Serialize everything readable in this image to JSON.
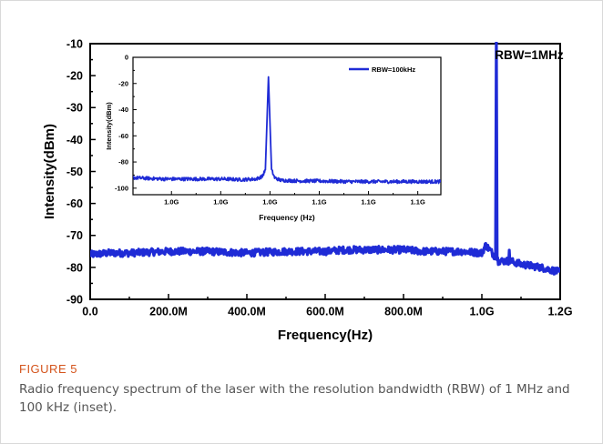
{
  "chart_data": [
    {
      "type": "line",
      "title": "",
      "xlabel": "Frequency(Hz)",
      "ylabel": "Intensity(dBm)",
      "xlim": [
        0,
        1200000000
      ],
      "ylim": [
        -90,
        -10
      ],
      "x_ticks": [
        {
          "value": 0,
          "label": "0.0"
        },
        {
          "value": 200000000,
          "label": "200.0M"
        },
        {
          "value": 400000000,
          "label": "400.0M"
        },
        {
          "value": 600000000,
          "label": "600.0M"
        },
        {
          "value": 800000000,
          "label": "800.0M"
        },
        {
          "value": 1000000000,
          "label": "1.0G"
        },
        {
          "value": 1200000000,
          "label": "1.2G"
        }
      ],
      "y_ticks": [
        -10,
        -20,
        -30,
        -40,
        -50,
        -60,
        -70,
        -80,
        -90
      ],
      "annotation": "RBW=1MHz",
      "color": "#1f2bd6",
      "series": [
        {
          "x": [
            0,
            50000000,
            100000000,
            200000000,
            300000000,
            400000000,
            500000000,
            600000000,
            650000000,
            700000000,
            750000000,
            800000000,
            850000000,
            900000000,
            950000000,
            1000000000,
            1010000000,
            1030000000,
            1035000000,
            1037000000,
            1039000000,
            1042000000,
            1050000000,
            1068000000,
            1070000000,
            1072000000,
            1100000000,
            1150000000,
            1200000000
          ],
          "values": [
            -76,
            -75.5,
            -75.5,
            -75,
            -75,
            -75.5,
            -75,
            -75,
            -74.5,
            -74.5,
            -74.5,
            -74.5,
            -75,
            -75,
            -75,
            -75.5,
            -73,
            -76,
            -77,
            -8,
            -77,
            -78,
            -78,
            -78,
            -75.5,
            -78,
            -79,
            -80,
            -81.5
          ]
        }
      ]
    },
    {
      "type": "line",
      "title": "",
      "inset": true,
      "xlabel": "Frequency (Hz)",
      "ylabel": "Intensity(dBm)",
      "xlim": [
        0,
        1
      ],
      "ylim": [
        -105,
        0
      ],
      "x_ticks": [
        {
          "value": 0.125,
          "label": "1.0G"
        },
        {
          "value": 0.285,
          "label": "1.0G"
        },
        {
          "value": 0.445,
          "label": "1.0G"
        },
        {
          "value": 0.605,
          "label": "1.1G"
        },
        {
          "value": 0.765,
          "label": "1.1G"
        },
        {
          "value": 0.925,
          "label": "1.1G"
        }
      ],
      "y_ticks": [
        0,
        -20,
        -40,
        -60,
        -80,
        -100
      ],
      "legend": {
        "label": "RBW=100kHz",
        "position": "top-right"
      },
      "color": "#1f2bd6",
      "series": [
        {
          "name": "RBW=100kHz",
          "x": [
            0,
            0.1,
            0.2,
            0.3,
            0.35,
            0.4,
            0.42,
            0.43,
            0.44,
            0.45,
            0.46,
            0.48,
            0.55,
            0.6,
            0.7,
            0.8,
            0.9,
            1
          ],
          "values": [
            -92,
            -93,
            -93,
            -93,
            -93.5,
            -93,
            -91,
            -86,
            -15,
            -86,
            -92,
            -94,
            -94.5,
            -94.5,
            -95,
            -95,
            -95,
            -95
          ]
        }
      ]
    }
  ],
  "caption": {
    "label": "FIGURE 5",
    "text": "Radio frequency spectrum of the laser with the resolution bandwidth (RBW) of 1 MHz and 100 kHz (inset)."
  }
}
